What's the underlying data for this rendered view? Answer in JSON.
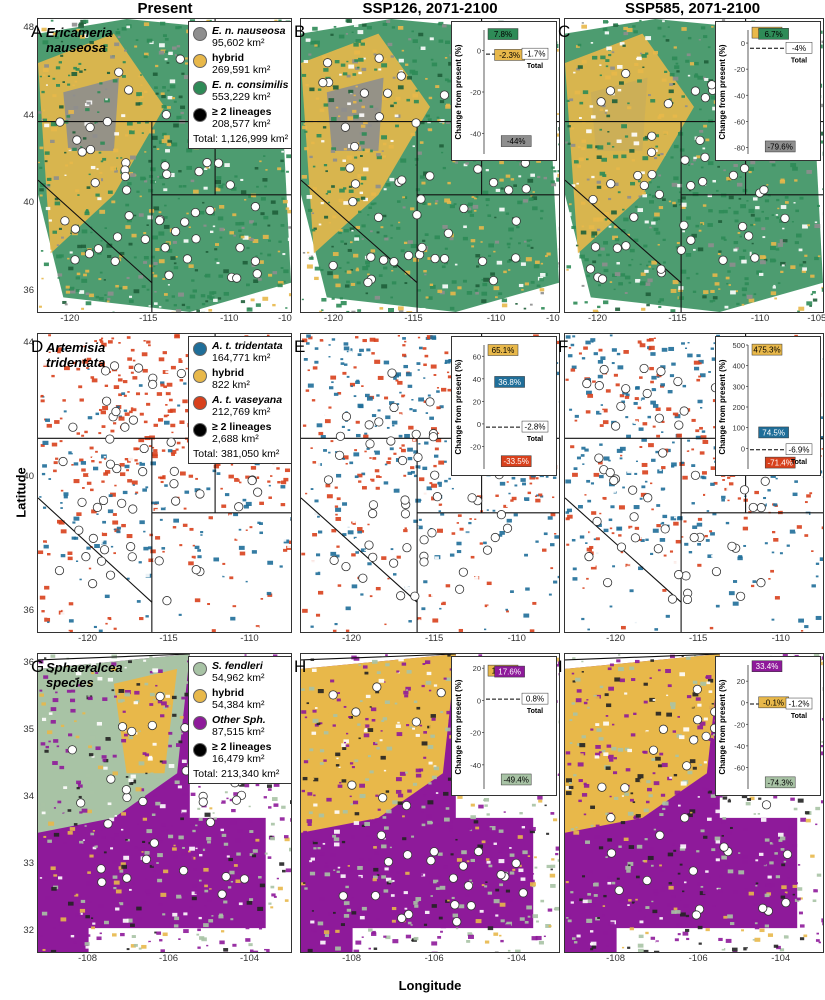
{
  "columns": [
    "Present",
    "SSP126, 2071-2100",
    "SSP585, 2071-2100"
  ],
  "axes": {
    "xlabel": "Longitude",
    "ylabel": "Latitude"
  },
  "colors": {
    "nauseosa": "#8e8e8e",
    "hybrid": "#e8b84a",
    "consimilis": "#2e8b57",
    "tridentata": "#1f6e99",
    "vaseyana": "#d8401c",
    "fendleri": "#a8c3a5",
    "other": "#8e1a9a",
    "multi": "#000000"
  },
  "rows": [
    {
      "species_label": [
        "Ericameria",
        "nauseosa"
      ],
      "letters": [
        "A",
        "B",
        "C"
      ],
      "x_ticks": [
        "-120",
        "-115",
        "-110",
        "-10"
      ],
      "x_ticks_right": [
        "-120",
        "-115",
        "-110",
        "-105"
      ],
      "y_ticks": [
        "48",
        "44",
        "40",
        "36"
      ],
      "legend": [
        {
          "name": "E. n. nauseosa",
          "italic": true,
          "area": "95,602 km²",
          "color": "#8e8e8e"
        },
        {
          "name": "hybrid",
          "italic": false,
          "area": "269,591 km²",
          "color": "#e8b84a"
        },
        {
          "name": "E. n. consimilis",
          "italic": true,
          "area": "553,229 km²",
          "color": "#2e8b57"
        },
        {
          "name": "≥ 2 lineages",
          "italic": false,
          "area": "208,577 km²",
          "color": "#000000"
        }
      ],
      "total": "Total: 1,126,999 km²"
    },
    {
      "species_label": [
        "Artemisia",
        "tridentata"
      ],
      "letters": [
        "D",
        "E",
        "F"
      ],
      "x_ticks": [
        "-120",
        "-115",
        "-110"
      ],
      "x_ticks_right": [
        "-120",
        "-115",
        "-110"
      ],
      "y_ticks": [
        "44",
        "40",
        "36"
      ],
      "legend": [
        {
          "name": "A. t. tridentata",
          "italic": true,
          "area": "164,771 km²",
          "color": "#1f6e99"
        },
        {
          "name": "hybrid",
          "italic": false,
          "area": "822 km²",
          "color": "#e8b84a"
        },
        {
          "name": "A. t. vaseyana",
          "italic": true,
          "area": "212,769 km²",
          "color": "#d8401c"
        },
        {
          "name": "≥ 2 lineages",
          "italic": false,
          "area": "2,688 km²",
          "color": "#000000"
        }
      ],
      "total": "Total: 381,050 km²"
    },
    {
      "species_label": [
        "Sphaeralcea",
        "species"
      ],
      "letters": [
        "G",
        "H",
        "I"
      ],
      "x_ticks": [
        "-108",
        "-106",
        "-104"
      ],
      "x_ticks_right": [
        "-108",
        "-106",
        "-104"
      ],
      "y_ticks": [
        "36",
        "35",
        "34",
        "33",
        "32"
      ],
      "legend": [
        {
          "name": "S. fendleri",
          "italic": true,
          "area": "54,962 km²",
          "color": "#a8c3a5"
        },
        {
          "name": "hybrid",
          "italic": false,
          "area": "54,384 km²",
          "color": "#e8b84a"
        },
        {
          "name": "Other Sph.",
          "italic": true,
          "area": "87,515 km²",
          "color": "#8e1a9a"
        },
        {
          "name": "≥ 2 lineages",
          "italic": false,
          "area": "16,479 km²",
          "color": "#000000"
        }
      ],
      "total": "Total: 213,340 km²"
    }
  ],
  "chart_data": [
    {
      "type": "bar",
      "panel": "B",
      "ylabel": "Change from present (%)",
      "ylim": [
        -50,
        10
      ],
      "y_ticks": [
        0,
        -20,
        -40
      ],
      "bars": [
        {
          "label": "7.8%",
          "value": 7.8,
          "color": "#2e8b57"
        },
        {
          "label": "-2.3%",
          "value": -2.3,
          "color": "#e8b84a"
        },
        {
          "label": "-44%",
          "value": -44,
          "color": "#8e8e8e"
        }
      ],
      "total": {
        "label": "-1.7%",
        "value": -1.7,
        "name": "Total"
      }
    },
    {
      "type": "bar",
      "panel": "C",
      "ylabel": "Change from present (%)",
      "ylim": [
        -85,
        10
      ],
      "y_ticks": [
        0,
        -20,
        -40,
        -60,
        -80
      ],
      "bars": [
        {
          "label": "7.6%",
          "value": 7.6,
          "color": "#e8b84a"
        },
        {
          "label": "6.7%",
          "value": 6.7,
          "color": "#2e8b57"
        },
        {
          "label": "-79.6%",
          "value": -79.6,
          "color": "#8e8e8e"
        }
      ],
      "total": {
        "label": "-4%",
        "value": -4,
        "name": "Total"
      }
    },
    {
      "type": "bar",
      "panel": "E",
      "ylabel": "Change from present (%)",
      "ylim": [
        -40,
        70
      ],
      "y_ticks": [
        60,
        40,
        20,
        0,
        -20
      ],
      "bars": [
        {
          "label": "65.1%",
          "value": 65.1,
          "color": "#e8b84a"
        },
        {
          "label": "36.8%",
          "value": 36.8,
          "color": "#1f6e99"
        },
        {
          "label": "-33.5%",
          "value": -33.5,
          "color": "#d8401c"
        }
      ],
      "total": {
        "label": "-2.8%",
        "value": -2.8,
        "name": "Total"
      }
    },
    {
      "type": "bar",
      "panel": "F",
      "ylabel": "Change from present (%)",
      "ylim": [
        -100,
        500
      ],
      "y_ticks": [
        500,
        400,
        300,
        200,
        100,
        0
      ],
      "bars": [
        {
          "label": "475.3%",
          "value": 475.3,
          "color": "#e8b84a"
        },
        {
          "label": "74.5%",
          "value": 74.5,
          "color": "#1f6e99"
        },
        {
          "label": "-71.4%",
          "value": -71.4,
          "color": "#d8401c"
        }
      ],
      "total": {
        "label": "-6.9%",
        "value": -6.9,
        "name": "Total"
      }
    },
    {
      "type": "bar",
      "panel": "H",
      "ylabel": "Change from present (%)",
      "ylim": [
        -55,
        22
      ],
      "y_ticks": [
        20,
        0,
        -20,
        -40
      ],
      "bars": [
        {
          "label": "18.2%",
          "value": 18.2,
          "color": "#e8b84a"
        },
        {
          "label": "17.6%",
          "value": 17.6,
          "color": "#8e1a9a"
        },
        {
          "label": "-49.4%",
          "value": -49.4,
          "color": "#a8c3a5"
        }
      ],
      "total": {
        "label": "0.8%",
        "value": 0.8,
        "name": "Total"
      }
    },
    {
      "type": "bar",
      "panel": "I",
      "ylabel": "Change from present (%)",
      "ylim": [
        -80,
        35
      ],
      "y_ticks": [
        20,
        0,
        -20,
        -40,
        -60
      ],
      "bars": [
        {
          "label": "33.4%",
          "value": 33.4,
          "color": "#8e1a9a"
        },
        {
          "label": "-0.1%",
          "value": -0.1,
          "color": "#e8b84a"
        },
        {
          "label": "-74.3%",
          "value": -74.3,
          "color": "#a8c3a5"
        }
      ],
      "total": {
        "label": "-1.2%",
        "value": -1.2,
        "name": "Total"
      }
    }
  ]
}
